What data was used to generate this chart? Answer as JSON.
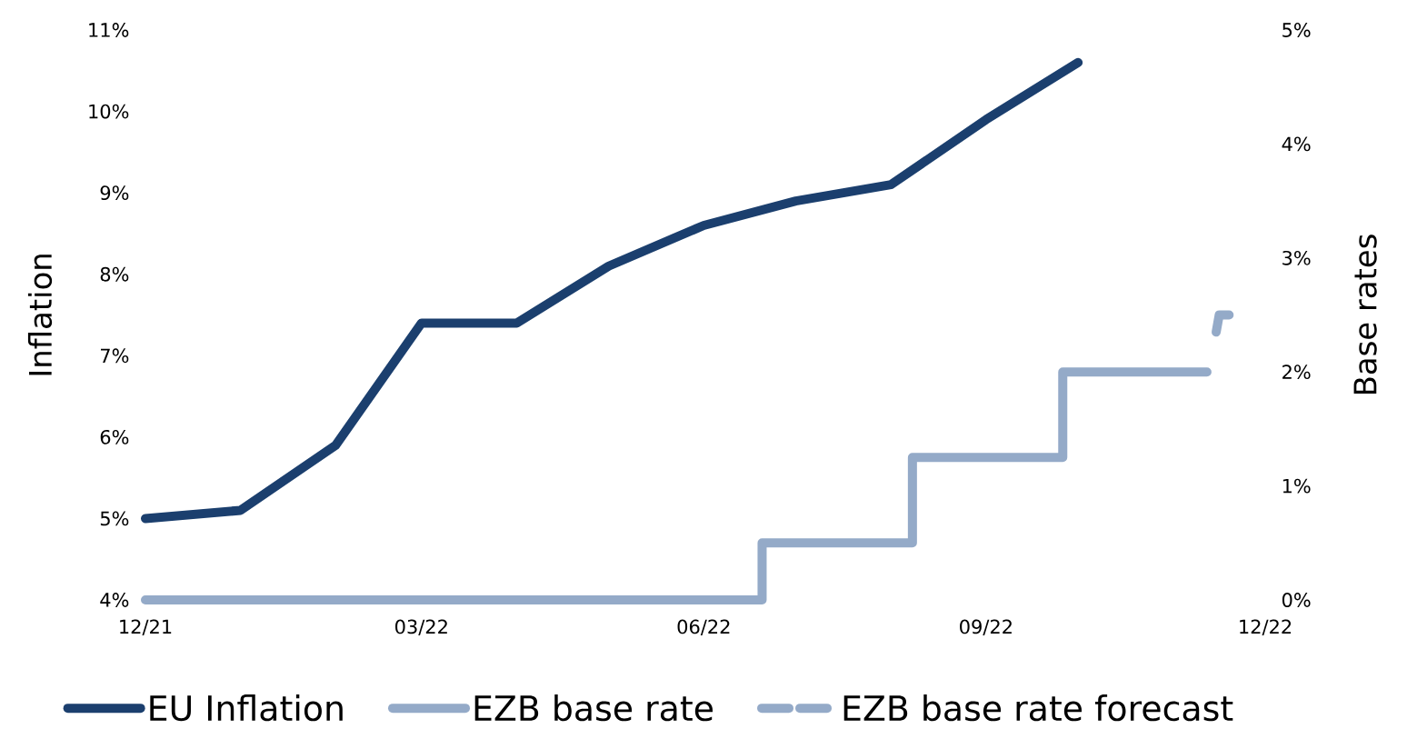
{
  "chart_data": {
    "type": "line",
    "ylabel": "Inflation",
    "y2label": "Base rates",
    "legend": "bottom",
    "marker": "none",
    "xlim": [
      "2021-12-01",
      "2022-12-01"
    ],
    "xticks": [
      {
        "value": "2021-12-01",
        "label": "12/21"
      },
      {
        "value": "2022-03-01",
        "label": "03/22"
      },
      {
        "value": "2022-06-01",
        "label": "06/22"
      },
      {
        "value": "2022-09-01",
        "label": "09/22"
      },
      {
        "value": "2022-12-01",
        "label": "12/22"
      }
    ],
    "ylim": [
      4,
      11
    ],
    "yticks": [
      {
        "value": 4,
        "label": "4%"
      },
      {
        "value": 5,
        "label": "5%"
      },
      {
        "value": 6,
        "label": "6%"
      },
      {
        "value": 7,
        "label": "7%"
      },
      {
        "value": 8,
        "label": "8%"
      },
      {
        "value": 9,
        "label": "9%"
      },
      {
        "value": 10,
        "label": "10%"
      },
      {
        "value": 11,
        "label": "11%"
      }
    ],
    "y2lim": [
      0,
      5
    ],
    "y2ticks": [
      {
        "value": 0,
        "label": "0%"
      },
      {
        "value": 1,
        "label": "1%"
      },
      {
        "value": 2,
        "label": "2%"
      },
      {
        "value": 3,
        "label": "3%"
      },
      {
        "value": 4,
        "label": "4%"
      },
      {
        "value": 5,
        "label": "5%"
      }
    ],
    "series": [
      {
        "name": "EU Inflation",
        "axis": "y",
        "color": "#1b3f6e",
        "line_style": "solid",
        "x": [
          "2021-12-01",
          "2022-01-01",
          "2022-02-01",
          "2022-03-01",
          "2022-04-01",
          "2022-05-01",
          "2022-06-01",
          "2022-07-01",
          "2022-08-01",
          "2022-09-01",
          "2022-10-01"
        ],
        "values": [
          5.0,
          5.1,
          5.9,
          7.4,
          7.4,
          8.1,
          8.6,
          8.9,
          9.1,
          9.9,
          10.6
        ]
      },
      {
        "name": "EZB base rate",
        "type": "step",
        "axis": "y2",
        "color": "#94aac8",
        "line_style": "solid",
        "x": [
          "2021-12-01",
          "2022-06-20",
          "2022-08-08",
          "2022-09-26",
          "2022-11-12"
        ],
        "values": [
          0,
          0.5,
          1.25,
          2.0,
          2.0
        ]
      },
      {
        "name": "EZB base rate forecast",
        "type": "line",
        "axis": "y2",
        "color": "#94aac8",
        "line_style": "dashed",
        "x": [
          "2022-11-15",
          "2022-11-16",
          "2022-11-22"
        ],
        "values": [
          2.35,
          2.5,
          2.5
        ]
      }
    ]
  }
}
